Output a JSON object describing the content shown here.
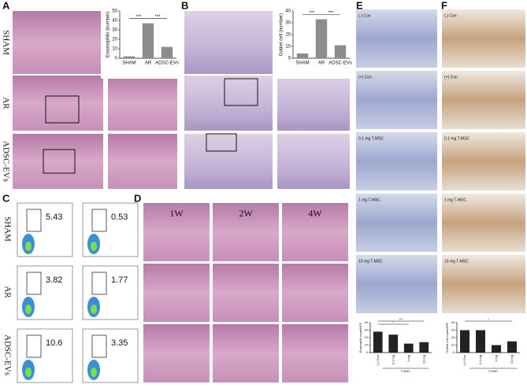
{
  "panel_labels": [
    "A",
    "B",
    "C",
    "D",
    "E",
    "F"
  ],
  "panel_a": {
    "row_labels": [
      "SHAM",
      "AR",
      "ADSC-EVs"
    ]
  },
  "panel_c": {
    "row_labels": [
      "SHAM",
      "AR",
      "ADSC-EVs"
    ],
    "gates": [
      [
        5.43,
        0.53
      ],
      [
        3.82,
        1.77
      ],
      [
        10.6,
        3.35
      ]
    ]
  },
  "panel_d": {
    "column_labels": [
      "1W",
      "2W",
      "4W"
    ]
  },
  "panel_e": {
    "image_labels": [
      "(-) Con",
      "(+) Con",
      "0.1 mg T-MSC",
      "1 mg T-MSC",
      "10 mg T-MSC"
    ]
  },
  "panel_f": {
    "image_labels": [
      "(-) Con",
      "(+) Con",
      "0.1 mg T-MSC",
      "1 mg T-MSC",
      "10 mg T-MSC"
    ]
  },
  "chart_data": [
    {
      "type": "bar",
      "y_label": "Eosonophils (number)",
      "categories": [
        "SHAM",
        "AR",
        "ADSC-EVs"
      ],
      "values": [
        2,
        37,
        12
      ],
      "color": "#8c8c8c",
      "ylim": [
        0,
        50
      ],
      "yticks": [
        0,
        10,
        20,
        30,
        40,
        50
      ],
      "significance": [
        "***",
        "***"
      ]
    },
    {
      "type": "bar",
      "y_label": "Goblet cell (number)",
      "categories": [
        "SHAM",
        "AR",
        "ADSC-EVs"
      ],
      "values": [
        4,
        33,
        11
      ],
      "color": "#8c8c8c",
      "ylim": [
        0,
        40
      ],
      "yticks": [
        0,
        10,
        20,
        30,
        40
      ],
      "significance": [
        "***",
        "***"
      ]
    },
    {
      "type": "bar",
      "y_label": "Eosinophil count/HPF",
      "categories": [
        "(+) Con",
        "0.1 mg",
        "1 mg",
        "10 mg"
      ],
      "group_label": "T-MSC",
      "values": [
        28,
        24,
        12,
        14
      ],
      "color": "#222222",
      "ylim": [
        0,
        40
      ],
      "yticks": [
        0,
        10,
        20,
        30,
        40
      ],
      "significance": [
        "***",
        "*"
      ]
    },
    {
      "type": "bar",
      "y_label": "Goblet cell count/HPF",
      "categories": [
        "(+) Con",
        "0.1 mg",
        "1 mg",
        "10 mg"
      ],
      "group_label": "T-MSC",
      "values": [
        30,
        30,
        10,
        15
      ],
      "color": "#222222",
      "ylim": [
        0,
        40
      ],
      "yticks": [
        0,
        10,
        20,
        30,
        40
      ],
      "significance": [
        "*"
      ]
    }
  ]
}
